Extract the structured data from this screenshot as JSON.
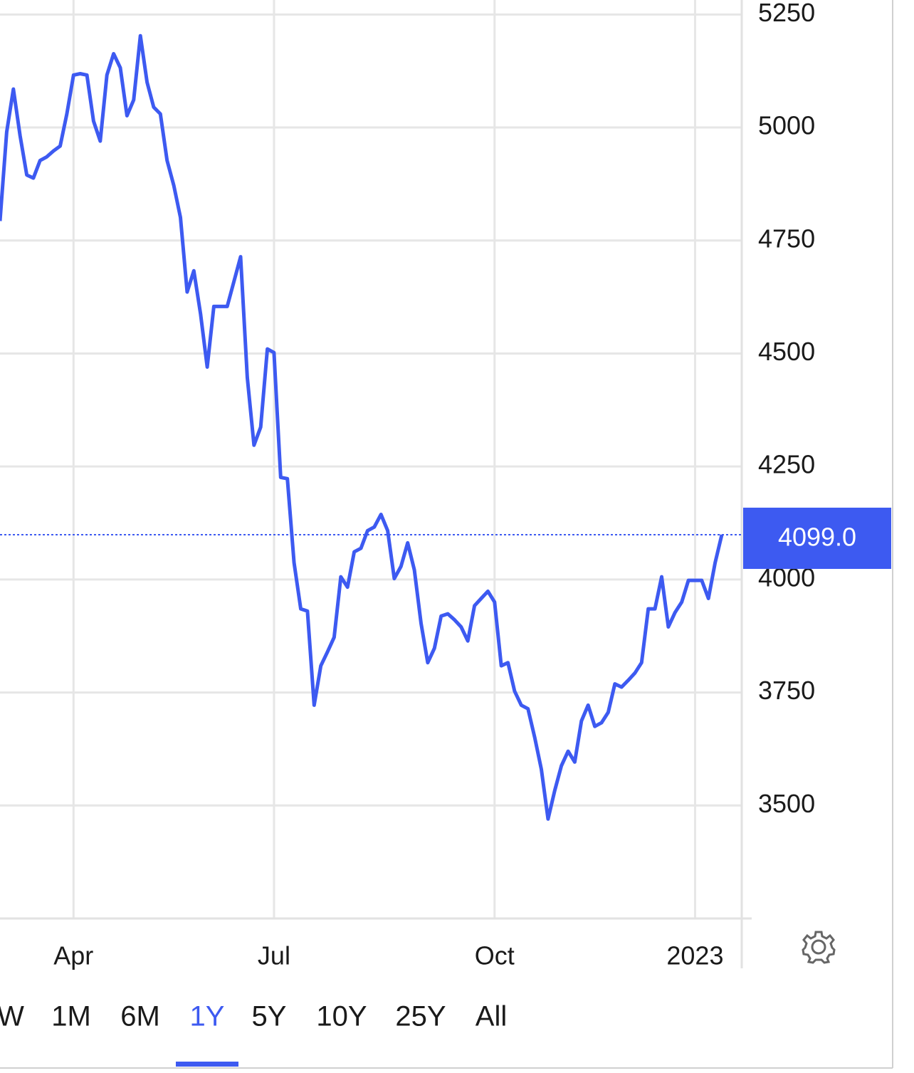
{
  "chart_data": {
    "type": "line",
    "categories": [
      null,
      null,
      null,
      null,
      null,
      null,
      null,
      null,
      null,
      null,
      null,
      "Apr",
      null,
      null,
      null,
      null,
      null,
      null,
      null,
      null,
      null,
      null,
      null,
      null,
      null,
      null,
      null,
      null,
      null,
      null,
      null,
      null,
      null,
      null,
      null,
      null,
      null,
      null,
      null,
      null,
      null,
      "Jul",
      null,
      null,
      null,
      null,
      null,
      null,
      null,
      null,
      null,
      null,
      null,
      null,
      null,
      null,
      null,
      null,
      null,
      null,
      null,
      null,
      null,
      null,
      null,
      null,
      null,
      null,
      null,
      null,
      null,
      null,
      null,
      null,
      "Oct",
      null,
      null,
      null,
      null,
      null,
      null,
      null,
      null,
      null,
      null,
      null,
      null,
      null,
      null,
      null,
      null,
      null,
      null,
      null,
      null,
      null,
      null,
      null,
      null,
      null,
      null,
      null,
      null,
      null,
      "2023",
      null,
      null,
      null,
      null
    ],
    "series": [
      {
        "color": "#3d5af1",
        "values": [
          4793,
          4990,
          5085,
          4982,
          4895,
          4888,
          4927,
          4935,
          4948,
          4959,
          5030,
          5116,
          5119,
          5116,
          5014,
          4970,
          5116,
          5163,
          5132,
          5026,
          5061,
          5203,
          5100,
          5045,
          5030,
          4927,
          4872,
          4801,
          4636,
          4683,
          4588,
          4470,
          4604,
          4604,
          4604,
          4659,
          4714,
          4447,
          4297,
          4337,
          4510,
          4502,
          4226,
          4223,
          4037,
          3935,
          3930,
          3722,
          3809,
          3840,
          3872,
          4006,
          3983,
          4061,
          4069,
          4108,
          4116,
          4144,
          4108,
          4002,
          4029,
          4081,
          4021,
          3903,
          3816,
          3848,
          3919,
          3924,
          3911,
          3895,
          3864,
          3942,
          3958,
          3974,
          3950,
          3809,
          3816,
          3753,
          3722,
          3714,
          3651,
          3580,
          3470,
          3533,
          3588,
          3620,
          3596,
          3687,
          3722,
          3675,
          3683,
          3706,
          3769,
          3762,
          3777,
          3793,
          3816,
          3935,
          3935,
          4006,
          3895,
          3927,
          3950,
          3998,
          3998,
          3998,
          3958,
          4037,
          4099
        ]
      }
    ],
    "ylim": [
      3250,
      5282
    ],
    "yticks": [
      3500,
      3750,
      4000,
      4250,
      4500,
      4750,
      5000,
      5250
    ],
    "grid": true,
    "current": {
      "value": 4099,
      "label": "4099.0"
    },
    "ranges": [
      "W",
      "1M",
      "6M",
      "1Y",
      "5Y",
      "10Y",
      "25Y",
      "All"
    ],
    "selected_range": "1Y"
  }
}
